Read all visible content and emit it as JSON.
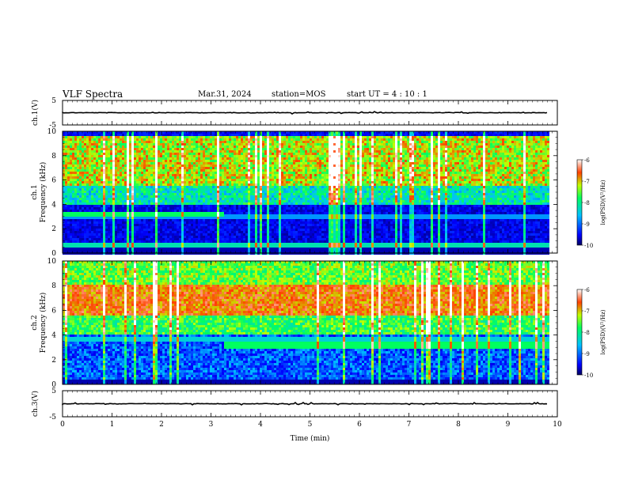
{
  "header": {
    "title": "VLF Spectra",
    "date": "Mar.31, 2024",
    "station": "station=MOS",
    "start": "start  UT =   4 : 10 : 1"
  },
  "chart_data": [
    {
      "type": "line",
      "name": "ch1-waveform",
      "ylabel": "ch.1(V)",
      "ylim": [
        -5,
        5
      ],
      "yticks": [
        "5",
        "-5"
      ],
      "x": [
        0,
        9.8
      ],
      "values": [
        0,
        0
      ]
    },
    {
      "type": "heatmap",
      "name": "ch1-spectrogram",
      "ylabel": "ch.1\nFrequency (kHz)",
      "ylim": [
        0,
        10
      ],
      "yticks": [
        "0",
        "2",
        "4",
        "6",
        "8",
        "10"
      ],
      "xlim": [
        0,
        10
      ],
      "data_xmax": 9.8,
      "colorbar": {
        "label": "log(PSD)(V²/Hz)",
        "range": [
          -10,
          -6
        ],
        "ticks": [
          "-6",
          "-7",
          "-8",
          "-9",
          "-10"
        ]
      }
    },
    {
      "type": "heatmap",
      "name": "ch2-spectrogram",
      "ylabel": "ch.2\nFrequency (kHz)",
      "ylim": [
        0,
        10
      ],
      "yticks": [
        "0",
        "2",
        "4",
        "6",
        "8",
        "10"
      ],
      "xlim": [
        0,
        10
      ],
      "data_xmax": 9.8,
      "colorbar": {
        "label": "log(PSD)(V²/Hz)",
        "range": [
          -10,
          -6
        ],
        "ticks": [
          "-6",
          "-7",
          "-8",
          "-9",
          "-10"
        ]
      }
    },
    {
      "type": "line",
      "name": "ch3-waveform",
      "ylabel": "ch.3(V)",
      "ylim": [
        -5,
        5
      ],
      "yticks": [
        "5",
        "-5"
      ],
      "x": [
        0,
        9.8
      ],
      "values": [
        0,
        0
      ]
    }
  ],
  "xaxis": {
    "label": "Time (min)",
    "ticks": [
      "0",
      "1",
      "2",
      "3",
      "4",
      "5",
      "6",
      "7",
      "8",
      "9",
      "10"
    ],
    "range": [
      0,
      10
    ]
  }
}
